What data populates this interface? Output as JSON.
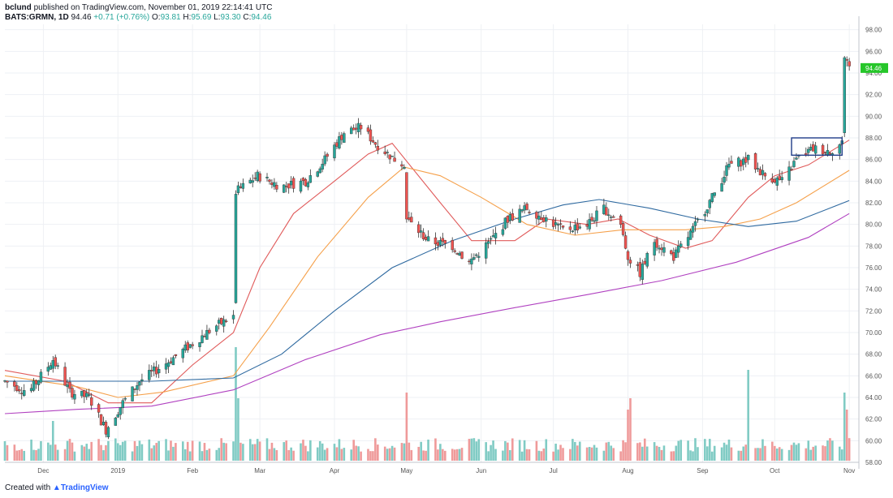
{
  "header": {
    "author": "bclund",
    "published_text": "published on TradingView.com, November 01, 2019 22:14:41 UTC",
    "symbol": "BATS:GRMN, 1D",
    "last": "94.46",
    "change": "+0.71 (+0.76%)",
    "o_label": "O:",
    "o": "93.81",
    "h_label": "H:",
    "h": "95.69",
    "l_label": "L:",
    "l": "93.30",
    "c_label": "C:",
    "c": "94.46"
  },
  "footer": {
    "created_with": "Created with",
    "brand": "TradingView"
  },
  "colors": {
    "up": "#26a69a",
    "down": "#ef5350",
    "vol_up": "#80cbc4",
    "vol_down": "#ef9a9a",
    "ma20": "#e05a5a",
    "ma50": "#f5a04a",
    "ma100": "#2f6aa0",
    "ma200": "#b040c0",
    "box": "#1f3c88",
    "price_tag": "#26c62a"
  },
  "chart_data": {
    "type": "candlestick",
    "x_tick_labels": [
      "Dec",
      "2019",
      "Feb",
      "Mar",
      "Apr",
      "May",
      "Jun",
      "Jul",
      "Aug",
      "Sep",
      "Oct",
      "Nov"
    ],
    "y_tick_labels": [
      "58.00",
      "60.00",
      "62.00",
      "64.00",
      "66.00",
      "68.00",
      "70.00",
      "72.00",
      "74.00",
      "76.00",
      "78.00",
      "80.00",
      "82.00",
      "84.00",
      "86.00",
      "88.00",
      "90.00",
      "92.00",
      "94.00",
      "96.00",
      "98.00"
    ],
    "ylim": [
      58,
      98.5
    ],
    "last_price_label": "94.46",
    "price_anchors": [
      [
        "2018-11-15",
        65.5
      ],
      [
        "2018-11-25",
        64.5
      ],
      [
        "2018-12-05",
        67.5
      ],
      [
        "2018-12-12",
        64.5
      ],
      [
        "2018-12-20",
        64.0
      ],
      [
        "2018-12-27",
        61.0
      ],
      [
        "2019-01-03",
        63.5
      ],
      [
        "2019-01-10",
        65.5
      ],
      [
        "2019-01-20",
        67.0
      ],
      [
        "2019-02-01",
        69.0
      ],
      [
        "2019-02-10",
        70.5
      ],
      [
        "2019-02-18",
        71.5
      ],
      [
        "2019-02-19",
        83.0
      ],
      [
        "2019-02-28",
        84.5
      ],
      [
        "2019-03-10",
        83.5
      ],
      [
        "2019-03-20",
        84.0
      ],
      [
        "2019-03-28",
        86.0
      ],
      [
        "2019-04-05",
        88.5
      ],
      [
        "2019-04-12",
        89.0
      ],
      [
        "2019-04-18",
        87.5
      ],
      [
        "2019-04-26",
        86.0
      ],
      [
        "2019-04-30",
        85.5
      ],
      [
        "2019-05-01",
        80.5
      ],
      [
        "2019-05-10",
        78.5
      ],
      [
        "2019-05-20",
        78.0
      ],
      [
        "2019-05-27",
        76.5
      ],
      [
        "2019-06-05",
        78.5
      ],
      [
        "2019-06-12",
        80.5
      ],
      [
        "2019-06-20",
        81.5
      ],
      [
        "2019-06-28",
        80.5
      ],
      [
        "2019-07-05",
        79.5
      ],
      [
        "2019-07-15",
        80.0
      ],
      [
        "2019-07-22",
        81.5
      ],
      [
        "2019-07-29",
        80.0
      ],
      [
        "2019-08-01",
        77.0
      ],
      [
        "2019-08-06",
        75.5
      ],
      [
        "2019-08-12",
        78.5
      ],
      [
        "2019-08-20",
        77.0
      ],
      [
        "2019-08-28",
        79.5
      ],
      [
        "2019-09-05",
        82.5
      ],
      [
        "2019-09-12",
        85.5
      ],
      [
        "2019-09-20",
        86.0
      ],
      [
        "2019-09-27",
        84.5
      ],
      [
        "2019-10-04",
        84.0
      ],
      [
        "2019-10-10",
        86.0
      ],
      [
        "2019-10-17",
        87.0
      ],
      [
        "2019-10-24",
        86.8
      ],
      [
        "2019-10-29",
        87.5
      ],
      [
        "2019-10-30",
        95.0
      ],
      [
        "2019-11-01",
        94.46
      ]
    ],
    "moving_averages": [
      {
        "key": "ma20",
        "points": [
          [
            "2018-11-15",
            66.5
          ],
          [
            "2018-12-10",
            65.5
          ],
          [
            "2018-12-28",
            63.5
          ],
          [
            "2019-01-15",
            63.5
          ],
          [
            "2019-02-01",
            67.0
          ],
          [
            "2019-02-18",
            70.0
          ],
          [
            "2019-03-01",
            76.0
          ],
          [
            "2019-03-15",
            81.0
          ],
          [
            "2019-04-01",
            84.0
          ],
          [
            "2019-04-15",
            86.5
          ],
          [
            "2019-04-25",
            87.5
          ],
          [
            "2019-05-15",
            82.0
          ],
          [
            "2019-05-28",
            78.5
          ],
          [
            "2019-06-15",
            78.5
          ],
          [
            "2019-06-28",
            80.5
          ],
          [
            "2019-07-15",
            80.0
          ],
          [
            "2019-07-28",
            80.5
          ],
          [
            "2019-08-10",
            79.0
          ],
          [
            "2019-08-25",
            77.8
          ],
          [
            "2019-09-05",
            78.5
          ],
          [
            "2019-09-20",
            82.5
          ],
          [
            "2019-10-01",
            84.5
          ],
          [
            "2019-10-15",
            85.5
          ],
          [
            "2019-11-01",
            87.8
          ]
        ]
      },
      {
        "key": "ma50",
        "points": [
          [
            "2018-11-15",
            66.0
          ],
          [
            "2018-12-15",
            65.0
          ],
          [
            "2019-01-01",
            64.0
          ],
          [
            "2019-01-20",
            64.5
          ],
          [
            "2019-02-18",
            66.0
          ],
          [
            "2019-03-05",
            70.5
          ],
          [
            "2019-03-25",
            77.0
          ],
          [
            "2019-04-15",
            82.5
          ],
          [
            "2019-04-30",
            85.3
          ],
          [
            "2019-05-15",
            84.5
          ],
          [
            "2019-06-01",
            82.5
          ],
          [
            "2019-06-20",
            80.0
          ],
          [
            "2019-07-10",
            79.0
          ],
          [
            "2019-07-30",
            79.5
          ],
          [
            "2019-08-25",
            79.5
          ],
          [
            "2019-09-10",
            79.8
          ],
          [
            "2019-09-25",
            80.5
          ],
          [
            "2019-10-10",
            82.0
          ],
          [
            "2019-11-01",
            85.0
          ]
        ]
      },
      {
        "key": "ma100",
        "points": [
          [
            "2018-11-15",
            65.5
          ],
          [
            "2018-12-15",
            65.5
          ],
          [
            "2019-01-15",
            65.5
          ],
          [
            "2019-02-18",
            65.8
          ],
          [
            "2019-03-10",
            68.0
          ],
          [
            "2019-04-01",
            72.0
          ],
          [
            "2019-04-25",
            76.0
          ],
          [
            "2019-05-20",
            78.5
          ],
          [
            "2019-06-15",
            80.5
          ],
          [
            "2019-07-05",
            81.8
          ],
          [
            "2019-07-20",
            82.3
          ],
          [
            "2019-08-10",
            81.5
          ],
          [
            "2019-08-30",
            80.5
          ],
          [
            "2019-09-20",
            79.8
          ],
          [
            "2019-10-10",
            80.3
          ],
          [
            "2019-11-01",
            82.2
          ]
        ]
      },
      {
        "key": "ma200",
        "points": [
          [
            "2018-11-15",
            62.5
          ],
          [
            "2018-12-15",
            62.9
          ],
          [
            "2019-01-15",
            63.2
          ],
          [
            "2019-02-18",
            64.7
          ],
          [
            "2019-03-20",
            67.5
          ],
          [
            "2019-04-20",
            69.8
          ],
          [
            "2019-05-15",
            71.0
          ],
          [
            "2019-06-15",
            72.3
          ],
          [
            "2019-07-15",
            73.5
          ],
          [
            "2019-08-15",
            74.8
          ],
          [
            "2019-09-15",
            76.5
          ],
          [
            "2019-10-15",
            78.8
          ],
          [
            "2019-11-01",
            81.0
          ]
        ]
      }
    ],
    "volume_spikes": [
      [
        "2018-12-05",
        0.35
      ],
      [
        "2019-02-19",
        1.0
      ],
      [
        "2019-02-20",
        0.55
      ],
      [
        "2019-05-01",
        0.6
      ],
      [
        "2019-08-01",
        0.45
      ],
      [
        "2019-08-02",
        0.55
      ],
      [
        "2019-09-20",
        0.8
      ],
      [
        "2019-10-30",
        0.6
      ],
      [
        "2019-10-31",
        0.45
      ]
    ],
    "consolidation_box": {
      "start": "2019-10-08",
      "end": "2019-10-29",
      "low": 86.4,
      "high": 88.0
    }
  }
}
